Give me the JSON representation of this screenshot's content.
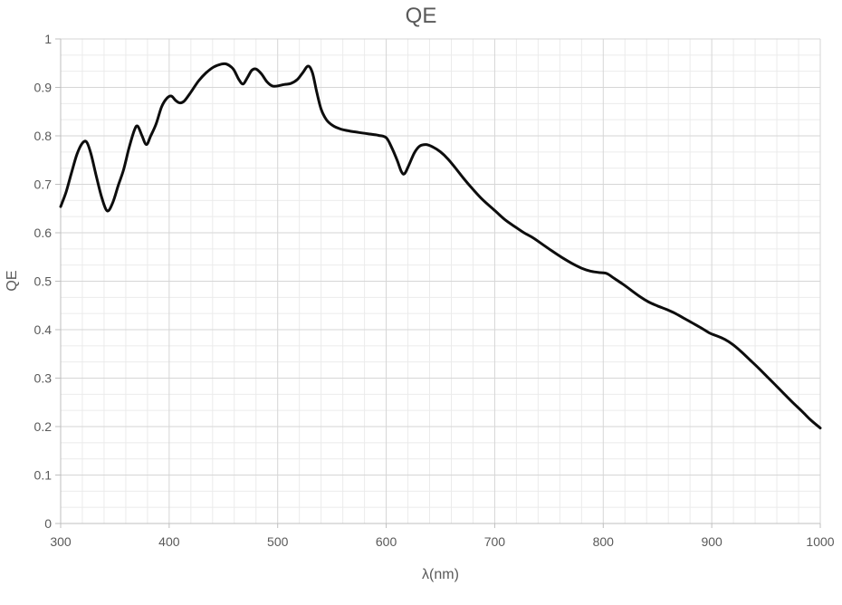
{
  "colors": {
    "background": "#ffffff",
    "grid_minor": "#ebebeb",
    "grid_major": "#d6d6d6",
    "axis": "#bfbfbf",
    "text": "#595959",
    "curve": "#0d0d0d"
  },
  "chart_data": {
    "type": "line",
    "title": "QE",
    "xlabel": "λ(nm)",
    "ylabel": "QE",
    "xlim": [
      300,
      1000
    ],
    "ylim": [
      0,
      1
    ],
    "legend": "none",
    "grid": {
      "x_major_step": 100,
      "x_minor_step": 20,
      "y_major_step": 0.1,
      "y_minor_step": 0.0333333
    },
    "x_ticks": {
      "values": [
        300,
        400,
        500,
        600,
        700,
        800,
        900,
        1000
      ],
      "labels": [
        "300",
        "400",
        "500",
        "600",
        "700",
        "800",
        "900",
        "1000"
      ]
    },
    "y_ticks": {
      "values": [
        0,
        0.1,
        0.2,
        0.3,
        0.4,
        0.5,
        0.6,
        0.7,
        0.8,
        0.9,
        1
      ],
      "labels": [
        "0",
        "0.1",
        "0.2",
        "0.3",
        "0.4",
        "0.5",
        "0.6",
        "0.7",
        "0.8",
        "0.9",
        "1"
      ]
    },
    "series": [
      {
        "name": "QE",
        "color": "#0d0d0d",
        "stroke_width": 3,
        "points": [
          [
            300,
            0.654
          ],
          [
            305,
            0.684
          ],
          [
            310,
            0.724
          ],
          [
            315,
            0.762
          ],
          [
            320,
            0.785
          ],
          [
            324,
            0.787
          ],
          [
            328,
            0.762
          ],
          [
            333,
            0.715
          ],
          [
            338,
            0.672
          ],
          [
            343,
            0.645
          ],
          [
            348,
            0.662
          ],
          [
            353,
            0.697
          ],
          [
            358,
            0.73
          ],
          [
            363,
            0.775
          ],
          [
            368,
            0.812
          ],
          [
            371,
            0.82
          ],
          [
            375,
            0.8
          ],
          [
            379,
            0.782
          ],
          [
            383,
            0.8
          ],
          [
            388,
            0.825
          ],
          [
            393,
            0.86
          ],
          [
            398,
            0.878
          ],
          [
            402,
            0.882
          ],
          [
            406,
            0.873
          ],
          [
            410,
            0.868
          ],
          [
            414,
            0.872
          ],
          [
            420,
            0.89
          ],
          [
            427,
            0.913
          ],
          [
            434,
            0.93
          ],
          [
            441,
            0.942
          ],
          [
            448,
            0.948
          ],
          [
            453,
            0.948
          ],
          [
            459,
            0.938
          ],
          [
            464,
            0.917
          ],
          [
            468,
            0.907
          ],
          [
            472,
            0.92
          ],
          [
            476,
            0.935
          ],
          [
            480,
            0.938
          ],
          [
            485,
            0.928
          ],
          [
            490,
            0.912
          ],
          [
            495,
            0.903
          ],
          [
            500,
            0.903
          ],
          [
            506,
            0.906
          ],
          [
            512,
            0.908
          ],
          [
            518,
            0.916
          ],
          [
            523,
            0.93
          ],
          [
            528,
            0.944
          ],
          [
            532,
            0.93
          ],
          [
            536,
            0.89
          ],
          [
            540,
            0.855
          ],
          [
            545,
            0.833
          ],
          [
            551,
            0.821
          ],
          [
            558,
            0.814
          ],
          [
            566,
            0.81
          ],
          [
            575,
            0.807
          ],
          [
            584,
            0.804
          ],
          [
            593,
            0.801
          ],
          [
            600,
            0.796
          ],
          [
            605,
            0.776
          ],
          [
            610,
            0.75
          ],
          [
            614,
            0.726
          ],
          [
            617,
            0.722
          ],
          [
            621,
            0.74
          ],
          [
            626,
            0.765
          ],
          [
            631,
            0.779
          ],
          [
            637,
            0.782
          ],
          [
            643,
            0.777
          ],
          [
            650,
            0.767
          ],
          [
            657,
            0.752
          ],
          [
            664,
            0.733
          ],
          [
            671,
            0.713
          ],
          [
            679,
            0.692
          ],
          [
            689,
            0.668
          ],
          [
            700,
            0.646
          ],
          [
            710,
            0.626
          ],
          [
            719,
            0.612
          ],
          [
            727,
            0.6
          ],
          [
            735,
            0.59
          ],
          [
            744,
            0.576
          ],
          [
            753,
            0.562
          ],
          [
            762,
            0.549
          ],
          [
            771,
            0.537
          ],
          [
            780,
            0.527
          ],
          [
            788,
            0.521
          ],
          [
            796,
            0.518
          ],
          [
            803,
            0.516
          ],
          [
            810,
            0.506
          ],
          [
            818,
            0.494
          ],
          [
            826,
            0.481
          ],
          [
            834,
            0.468
          ],
          [
            842,
            0.457
          ],
          [
            850,
            0.449
          ],
          [
            858,
            0.442
          ],
          [
            866,
            0.434
          ],
          [
            874,
            0.424
          ],
          [
            882,
            0.414
          ],
          [
            890,
            0.404
          ],
          [
            898,
            0.393
          ],
          [
            905,
            0.387
          ],
          [
            912,
            0.38
          ],
          [
            919,
            0.37
          ],
          [
            927,
            0.355
          ],
          [
            935,
            0.338
          ],
          [
            943,
            0.321
          ],
          [
            951,
            0.303
          ],
          [
            959,
            0.285
          ],
          [
            967,
            0.267
          ],
          [
            975,
            0.249
          ],
          [
            983,
            0.232
          ],
          [
            991,
            0.214
          ],
          [
            1000,
            0.197
          ]
        ]
      }
    ]
  }
}
